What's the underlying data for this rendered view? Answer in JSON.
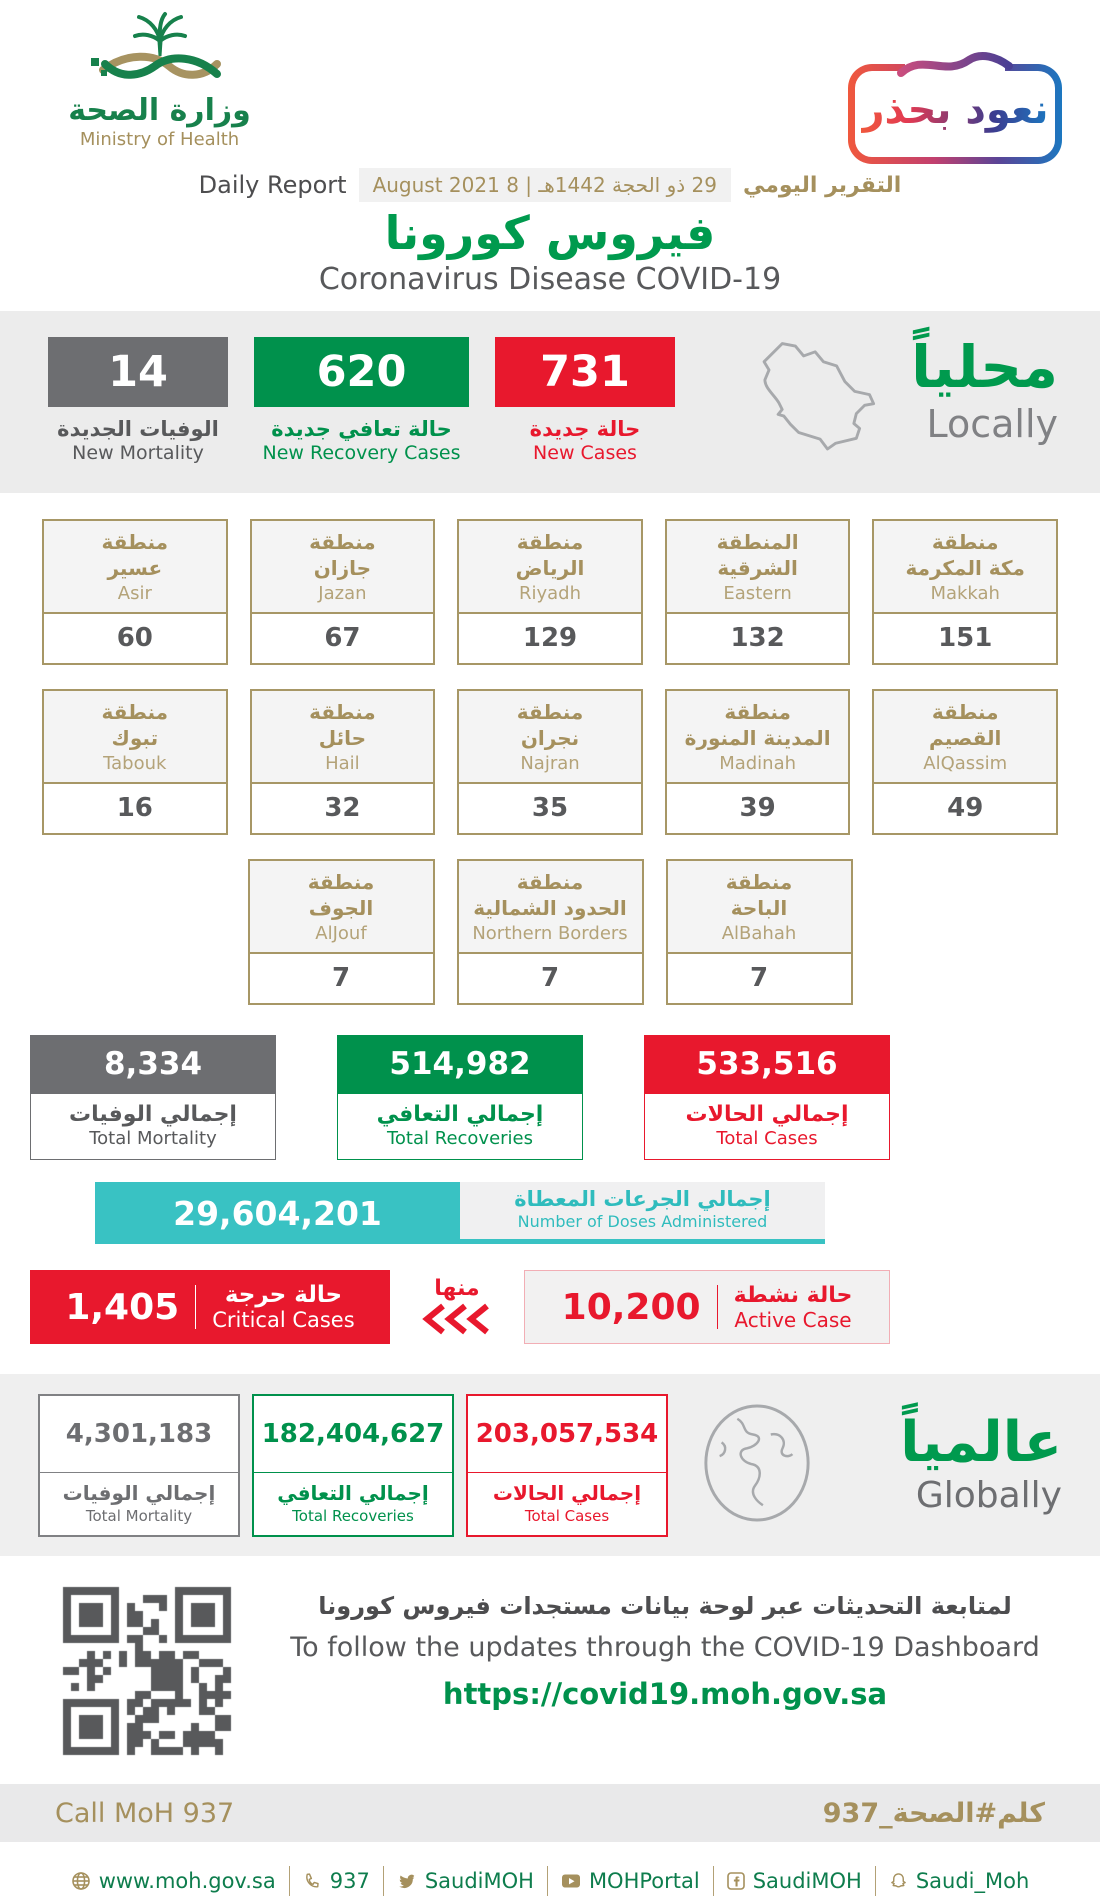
{
  "palette": {
    "green": "#00914C",
    "bright_green": "#009A4E",
    "red": "#E8182D",
    "gray": "#6D6E71",
    "teal": "#39C2C3",
    "gold": "#A5905D",
    "dark": "#58595B"
  },
  "header": {
    "logo_ar": "وزارة الصحة",
    "logo_en": "Ministry of Health",
    "badge": "نعود بحذر",
    "report_ar": "التقرير اليومي",
    "report_date": "29 ذو الحجة 1442هـ | 8 August 2021",
    "report_en": "Daily Report",
    "title_ar": "فيروس كورونا",
    "title_en": "Coronavirus Disease COVID-19"
  },
  "locally": {
    "heading_ar": "محلياً",
    "heading_en": "Locally",
    "new_mortality": {
      "value": "14",
      "ar": "الوفيات الجديدة",
      "en": "New Mortality"
    },
    "new_recovery": {
      "value": "620",
      "ar": "حالة تعافي جديدة",
      "en": "New Recovery Cases"
    },
    "new_cases": {
      "value": "731",
      "ar": "حالة جديدة",
      "en": "New Cases"
    }
  },
  "regions": [
    {
      "prefix": "منطقة",
      "ar": "مكة المكرمة",
      "en": "Makkah",
      "value": "151"
    },
    {
      "prefix": "المنطقة",
      "ar": "الشرقية",
      "en": "Eastern",
      "value": "132"
    },
    {
      "prefix": "منطقة",
      "ar": "الرياض",
      "en": "Riyadh",
      "value": "129"
    },
    {
      "prefix": "منطقة",
      "ar": "جازان",
      "en": "Jazan",
      "value": "67"
    },
    {
      "prefix": "منطقة",
      "ar": "عسير",
      "en": "Asir",
      "value": "60"
    },
    {
      "prefix": "منطقة",
      "ar": "القصيم",
      "en": "AlQassim",
      "value": "49"
    },
    {
      "prefix": "منطقة",
      "ar": "المدينة المنورة",
      "en": "Madinah",
      "value": "39"
    },
    {
      "prefix": "منطقة",
      "ar": "نجران",
      "en": "Najran",
      "value": "35"
    },
    {
      "prefix": "منطقة",
      "ar": "حائل",
      "en": "Hail",
      "value": "32"
    },
    {
      "prefix": "منطقة",
      "ar": "تبوك",
      "en": "Tabouk",
      "value": "16"
    },
    {
      "prefix": "منطقة",
      "ar": "الباحة",
      "en": "AlBahah",
      "value": "7"
    },
    {
      "prefix": "منطقة",
      "ar": "الحدود الشمالية",
      "en": "Northern Borders",
      "value": "7"
    },
    {
      "prefix": "منطقة",
      "ar": "الجوف",
      "en": "AlJouf",
      "value": "7"
    }
  ],
  "totals": {
    "mortality": {
      "value": "8,334",
      "ar": "إجمالي الوفيات",
      "en": "Total Mortality"
    },
    "recoveries": {
      "value": "514,982",
      "ar": "إجمالي التعافي",
      "en": "Total Recoveries"
    },
    "cases": {
      "value": "533,516",
      "ar": "إجمالي الحالات",
      "en": "Total Cases"
    }
  },
  "doses": {
    "value": "29,604,201",
    "ar": "إجمالي الجرعات المعطاة",
    "en": "Number of Doses Administered"
  },
  "critical": {
    "value": "1,405",
    "ar": "حالة حرجة",
    "en": "Critical Cases"
  },
  "of_which": "منها",
  "active": {
    "value": "10,200",
    "ar": "حالة نشطة",
    "en": "Active Case"
  },
  "globally": {
    "heading_ar": "عالمياً",
    "heading_en": "Globally",
    "mortality": {
      "value": "4,301,183",
      "ar": "إجمالي الوفيات",
      "en": "Total Mortality"
    },
    "recoveries": {
      "value": "182,404,627",
      "ar": "إجمالي التعافي",
      "en": "Total Recoveries"
    },
    "cases": {
      "value": "203,057,534",
      "ar": "إجمالي الحالات",
      "en": "Total Cases"
    }
  },
  "dashboard": {
    "ar": "لمتابعة التحديثات عبر لوحة بيانات مستجدات فيروس كورونا",
    "en": "To follow the updates through the COVID-19 Dashboard",
    "url": "https://covid19.moh.gov.sa"
  },
  "call_strip": {
    "en": "Call MoH 937",
    "ar": "كلم#الصحة_937"
  },
  "footer": {
    "website": "www.moh.gov.sa",
    "phone": "937",
    "twitter": "SaudiMOH",
    "youtube": "MOHPortal",
    "facebook": "SaudiMOH",
    "snapchat": "Saudi_Moh"
  }
}
